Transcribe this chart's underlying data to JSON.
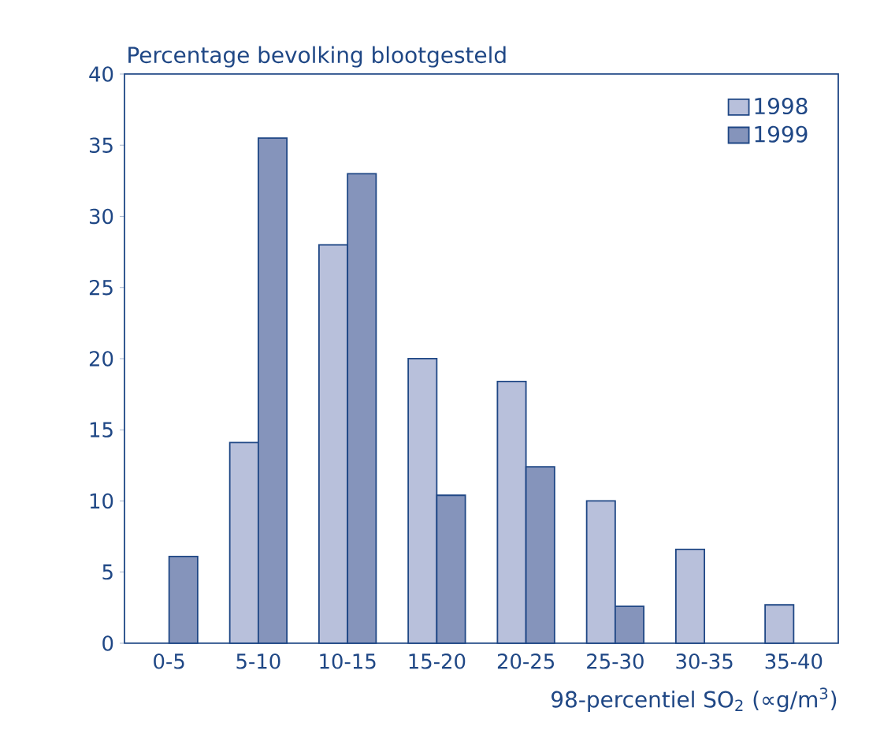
{
  "chart_data": {
    "type": "bar",
    "ylabel": "Percentage bevolking blootgesteld",
    "xlabel": "98-percentiel SO$_{2}$ (∝g/m$^{3}$)",
    "categories": [
      "0-5",
      "5-10",
      "10-15",
      "15-20",
      "20-25",
      "25-30",
      "30-35",
      "35-40"
    ],
    "series": [
      {
        "name": "1998",
        "color": "#b8c0db",
        "values": [
          null,
          14.1,
          28.0,
          20.0,
          18.4,
          10.0,
          6.6,
          2.7
        ]
      },
      {
        "name": "1999",
        "color": "#8594bb",
        "values": [
          6.1,
          35.5,
          33.0,
          10.4,
          12.4,
          2.6,
          null,
          null
        ]
      }
    ],
    "ylim": [
      0,
      40
    ],
    "yticks": [
      0,
      5,
      10,
      15,
      20,
      25,
      30,
      35,
      40
    ],
    "grid": false,
    "legend": "top right"
  }
}
